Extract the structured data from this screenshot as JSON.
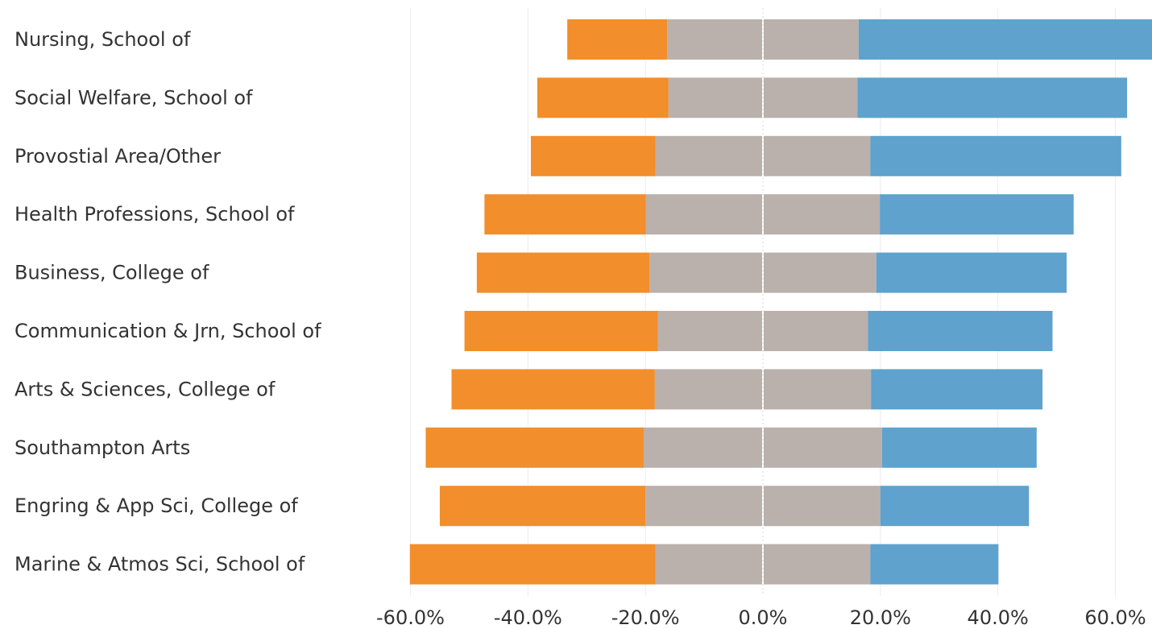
{
  "chart_data": {
    "type": "bar",
    "orientation": "horizontal",
    "stacking": "diverging",
    "categories": [
      "Nursing, School of",
      "Social Welfare, School of",
      "Provostial Area/Other",
      "Health Professions, School of",
      "Business, College of",
      "Communication & Jrn, School of",
      "Arts & Sciences, College of",
      "Southampton Arts",
      "Engring & App Sci, College of",
      "Marine & Atmos Sci, School of"
    ],
    "series": [
      {
        "color": "#f28e2b",
        "values": [
          -17.0,
          -22.3,
          -21.2,
          -27.5,
          -29.4,
          -32.9,
          -34.6,
          -37.1,
          -35.0,
          -41.8
        ]
      },
      {
        "color": "#bab0ac",
        "values": [
          -16.3,
          -16.1,
          -18.3,
          -19.9,
          -19.3,
          -17.9,
          -18.4,
          -20.3,
          -20.0,
          -18.3
        ]
      },
      {
        "color": "#bab0ac",
        "values": [
          16.3,
          16.1,
          18.3,
          19.9,
          19.3,
          17.9,
          18.4,
          20.3,
          20.0,
          18.3
        ]
      },
      {
        "color": "#5ea2cd",
        "values": [
          50.3,
          45.9,
          42.7,
          33.0,
          32.4,
          31.4,
          29.2,
          26.3,
          25.3,
          21.8
        ]
      }
    ],
    "x_ticks": [
      "-60.0%",
      "-40.0%",
      "-20.0%",
      "0.0%",
      "20.0%",
      "40.0%",
      "60.0%"
    ],
    "xlim": [
      -60,
      66
    ],
    "title": "",
    "xlabel": "",
    "ylabel": "",
    "grid": "vertical",
    "legend": "none"
  }
}
